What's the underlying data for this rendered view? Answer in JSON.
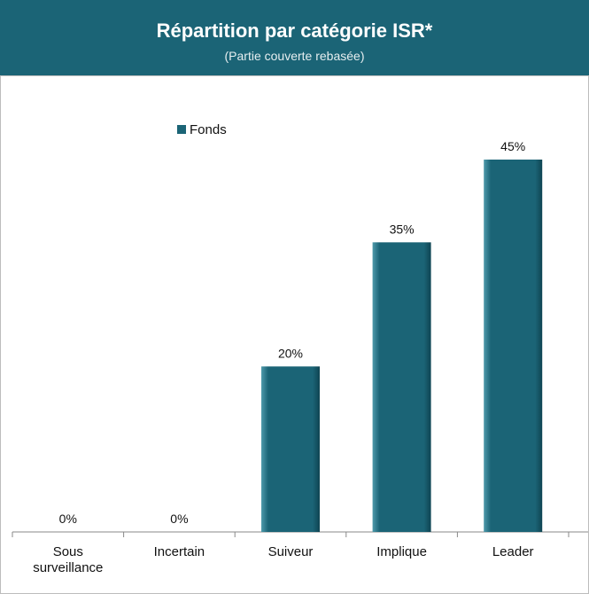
{
  "chart_data": {
    "type": "bar",
    "title": "Répartition par catégorie ISR*",
    "subtitle": "(Partie couverte rebasée)",
    "categories": [
      "Sous surveillance",
      "Incertain",
      "Suiveur",
      "Implique",
      "Leader"
    ],
    "series": [
      {
        "name": "Fonds",
        "color": "#1b6476",
        "values": [
          0,
          0,
          20,
          35,
          45
        ],
        "value_labels": [
          "0%",
          "0%",
          "20%",
          "35%",
          "45%"
        ]
      }
    ]
  }
}
